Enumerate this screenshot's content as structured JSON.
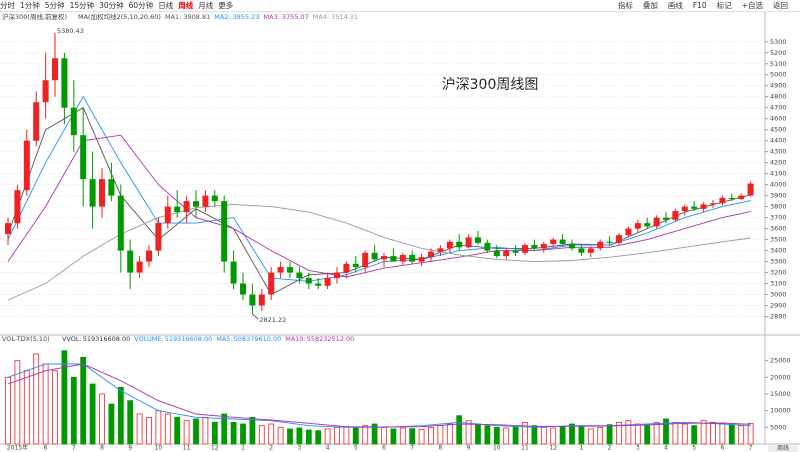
{
  "toolbar": {
    "periods": [
      "分时",
      "1分钟",
      "5分钟",
      "15分钟",
      "30分钟",
      "60分钟",
      "日线",
      "周线",
      "月线",
      "更多"
    ],
    "active": 7,
    "tools": [
      "指标",
      "叠加",
      "画线",
      "F10",
      "标记",
      "+自选",
      "返回"
    ]
  },
  "chart_data": [
    {
      "type": "candlestick",
      "header": "沪深300(周线,前复权)",
      "indicator": "MA(加权均线2(5,10,20,60)",
      "title": "沪深300周线图",
      "up_color": "#ee2222",
      "down_color": "#009a00",
      "grid": true,
      "ylim": [
        2650,
        5480
      ],
      "yticks": [
        2800,
        2900,
        3000,
        3100,
        3200,
        3300,
        3400,
        3500,
        3600,
        3700,
        3800,
        3900,
        4000,
        4100,
        4200,
        4300,
        4400,
        4500,
        4600,
        4700,
        4800,
        4900,
        5000,
        5100,
        5200,
        5300
      ],
      "high_label_index": 5,
      "low_label_index": 26,
      "categories": [
        null,
        "2015年",
        null,
        null,
        "6",
        null,
        null,
        "7",
        null,
        null,
        "8",
        null,
        null,
        "9",
        null,
        null,
        "10",
        null,
        null,
        "11",
        null,
        null,
        "12",
        null,
        null,
        "1",
        null,
        null,
        "2",
        null,
        null,
        "3",
        null,
        null,
        "4",
        null,
        null,
        "5",
        null,
        null,
        "6",
        null,
        null,
        "7",
        null,
        null,
        "8",
        null,
        null,
        "9",
        null,
        null,
        "10",
        null,
        null,
        "11",
        null,
        null,
        "12",
        null,
        null,
        "1",
        null,
        null,
        "2",
        null,
        null,
        "3",
        null,
        null,
        "4",
        null,
        null,
        "5",
        null,
        null,
        "6",
        null,
        null,
        "7"
      ],
      "candles": [
        [
          3550,
          3700,
          3450,
          3650
        ],
        [
          3650,
          4000,
          3600,
          3950
        ],
        [
          3950,
          4500,
          3900,
          4400
        ],
        [
          4400,
          4850,
          4350,
          4750
        ],
        [
          4750,
          5200,
          4600,
          4950
        ],
        [
          4950,
          5380.43,
          4800,
          5150
        ],
        [
          5150,
          5200,
          4550,
          4700
        ],
        [
          4700,
          4950,
          4300,
          4450
        ],
        [
          4450,
          4700,
          3800,
          4050
        ],
        [
          4050,
          4300,
          3600,
          3800
        ],
        [
          3800,
          4150,
          3700,
          4050
        ],
        [
          4050,
          4200,
          3850,
          3900
        ],
        [
          3900,
          4000,
          3200,
          3400
        ],
        [
          3400,
          3500,
          3050,
          3200
        ],
        [
          3200,
          3350,
          3150,
          3300
        ],
        [
          3300,
          3450,
          3250,
          3400
        ],
        [
          3400,
          3700,
          3350,
          3650
        ],
        [
          3650,
          3900,
          3600,
          3800
        ],
        [
          3800,
          3950,
          3700,
          3750
        ],
        [
          3750,
          3900,
          3650,
          3850
        ],
        [
          3850,
          3950,
          3700,
          3800
        ],
        [
          3800,
          3950,
          3750,
          3900
        ],
        [
          3900,
          3950,
          3800,
          3850
        ],
        [
          3850,
          3900,
          3200,
          3300
        ],
        [
          3300,
          3400,
          3050,
          3100
        ],
        [
          3100,
          3200,
          2950,
          3000
        ],
        [
          3000,
          3100,
          2821.22,
          2900
        ],
        [
          2900,
          3050,
          2850,
          3000
        ],
        [
          3000,
          3250,
          2950,
          3200
        ],
        [
          3200,
          3300,
          3150,
          3250
        ],
        [
          3250,
          3300,
          3150,
          3200
        ],
        [
          3200,
          3250,
          3100,
          3150
        ],
        [
          3150,
          3200,
          3050,
          3100
        ],
        [
          3100,
          3150,
          3050,
          3080
        ],
        [
          3080,
          3200,
          3050,
          3150
        ],
        [
          3150,
          3250,
          3100,
          3200
        ],
        [
          3200,
          3300,
          3150,
          3280
        ],
        [
          3280,
          3350,
          3200,
          3250
        ],
        [
          3250,
          3400,
          3200,
          3380
        ],
        [
          3380,
          3450,
          3300,
          3320
        ],
        [
          3320,
          3380,
          3250,
          3350
        ],
        [
          3350,
          3420,
          3300,
          3300
        ],
        [
          3300,
          3380,
          3270,
          3360
        ],
        [
          3360,
          3400,
          3280,
          3300
        ],
        [
          3300,
          3370,
          3260,
          3340
        ],
        [
          3340,
          3420,
          3300,
          3390
        ],
        [
          3390,
          3450,
          3350,
          3420
        ],
        [
          3420,
          3500,
          3380,
          3480
        ],
        [
          3480,
          3550,
          3400,
          3430
        ],
        [
          3430,
          3550,
          3420,
          3520
        ],
        [
          3520,
          3580,
          3450,
          3470
        ],
        [
          3470,
          3500,
          3380,
          3400
        ],
        [
          3400,
          3450,
          3330,
          3350
        ],
        [
          3350,
          3420,
          3320,
          3400
        ],
        [
          3400,
          3450,
          3350,
          3380
        ],
        [
          3380,
          3470,
          3360,
          3450
        ],
        [
          3450,
          3500,
          3400,
          3420
        ],
        [
          3420,
          3480,
          3380,
          3460
        ],
        [
          3460,
          3520,
          3430,
          3500
        ],
        [
          3500,
          3550,
          3440,
          3460
        ],
        [
          3460,
          3500,
          3400,
          3420
        ],
        [
          3420,
          3450,
          3350,
          3380
        ],
        [
          3380,
          3440,
          3340,
          3420
        ],
        [
          3420,
          3500,
          3400,
          3480
        ],
        [
          3480,
          3530,
          3440,
          3470
        ],
        [
          3470,
          3560,
          3450,
          3540
        ],
        [
          3540,
          3620,
          3520,
          3600
        ],
        [
          3600,
          3680,
          3560,
          3650
        ],
        [
          3650,
          3700,
          3600,
          3620
        ],
        [
          3620,
          3720,
          3600,
          3700
        ],
        [
          3700,
          3750,
          3650,
          3680
        ],
        [
          3680,
          3780,
          3660,
          3760
        ],
        [
          3760,
          3820,
          3720,
          3800
        ],
        [
          3800,
          3850,
          3760,
          3780
        ],
        [
          3780,
          3840,
          3750,
          3820
        ],
        [
          3820,
          3860,
          3790,
          3830
        ],
        [
          3830,
          3900,
          3810,
          3880
        ],
        [
          3880,
          3920,
          3850,
          3870
        ],
        [
          3870,
          3920,
          3860,
          3900
        ],
        [
          3900,
          4030,
          3890,
          4010
        ]
      ],
      "series": [
        {
          "name": "MA1:",
          "color": "#555555",
          "x": [
            0,
            4,
            8,
            12,
            16,
            20,
            24,
            28,
            32,
            36,
            40,
            44,
            48,
            52,
            56,
            60,
            64,
            68,
            72,
            76,
            79
          ],
          "values": [
            3550,
            4500,
            4700,
            3900,
            3500,
            3780,
            3600,
            3000,
            3180,
            3200,
            3340,
            3320,
            3450,
            3420,
            3420,
            3460,
            3450,
            3600,
            3750,
            3840,
            3908.81
          ]
        },
        {
          "name": "MA2:",
          "color": "#1e90ff",
          "x": [
            0,
            4,
            8,
            12,
            16,
            20,
            24,
            28,
            32,
            36,
            40,
            44,
            48,
            52,
            56,
            60,
            64,
            68,
            72,
            76,
            79
          ],
          "values": [
            3500,
            4200,
            4800,
            4200,
            3650,
            3650,
            3700,
            3150,
            3120,
            3180,
            3300,
            3320,
            3400,
            3430,
            3400,
            3450,
            3450,
            3560,
            3700,
            3800,
            3855.23
          ]
        },
        {
          "name": "MA3:",
          "color": "#b030b0",
          "x": [
            0,
            4,
            8,
            12,
            16,
            20,
            24,
            28,
            32,
            36,
            40,
            44,
            48,
            52,
            56,
            60,
            64,
            68,
            72,
            76,
            79
          ],
          "values": [
            3300,
            3800,
            4400,
            4450,
            4000,
            3700,
            3600,
            3400,
            3220,
            3160,
            3240,
            3290,
            3340,
            3400,
            3400,
            3430,
            3430,
            3500,
            3600,
            3700,
            3755.07
          ]
        },
        {
          "name": "MA4:",
          "color": "#999999",
          "x": [
            0,
            4,
            8,
            12,
            16,
            20,
            24,
            28,
            32,
            36,
            40,
            44,
            48,
            52,
            56,
            60,
            64,
            68,
            72,
            76,
            79
          ],
          "values": [
            2950,
            3100,
            3350,
            3550,
            3700,
            3790,
            3820,
            3800,
            3750,
            3650,
            3520,
            3420,
            3360,
            3320,
            3300,
            3310,
            3340,
            3380,
            3430,
            3480,
            3514.31
          ]
        }
      ]
    },
    {
      "type": "volume",
      "header": "VOL-TDX(5,10)",
      "period_badge": "周线",
      "ylim": [
        0,
        30000
      ],
      "yticks": [
        5000,
        10000,
        15000,
        20000,
        25000
      ],
      "values": [
        20000,
        25000,
        22000,
        27000,
        24000,
        22000,
        28000,
        20000,
        26000,
        18000,
        15000,
        12000,
        17000,
        13000,
        9000,
        8000,
        10000,
        9000,
        8000,
        7000,
        7500,
        8000,
        6500,
        9000,
        6500,
        6000,
        8000,
        5500,
        6000,
        5000,
        4500,
        4800,
        4200,
        4000,
        4500,
        5000,
        5200,
        4800,
        5500,
        6000,
        5000,
        4500,
        4800,
        4600,
        4400,
        5000,
        5500,
        6000,
        8500,
        7000,
        6000,
        5500,
        5000,
        4800,
        5200,
        6500,
        5500,
        5000,
        4800,
        5200,
        6000,
        5500,
        4500,
        5000,
        5800,
        6500,
        7000,
        6000,
        5500,
        6500,
        7500,
        6500,
        6000,
        5500,
        7000,
        6500,
        6000,
        5800,
        5500,
        6200
      ],
      "readouts": [
        {
          "name": "VVOL:",
          "value": 519316608,
          "label": "519316608.00",
          "color": "#333333"
        },
        {
          "name": "VOLUME:",
          "value": 519316608,
          "label": "519316608.00",
          "color": "#1e90ff"
        },
        {
          "name": "MA5:",
          "value": 508379610,
          "label": "508379610.00",
          "color": "#1e90ff"
        },
        {
          "name": "MA10:",
          "value": 558232512,
          "label": "558232512.00",
          "color": "#b030b0"
        }
      ],
      "series": [
        {
          "name": "MA5",
          "color": "#1e90ff",
          "x": [
            0,
            4,
            8,
            12,
            16,
            20,
            24,
            28,
            32,
            36,
            40,
            44,
            48,
            52,
            56,
            60,
            64,
            68,
            72,
            76,
            79
          ],
          "values": [
            20000,
            24000,
            24000,
            16000,
            10000,
            8000,
            7500,
            7000,
            5500,
            5000,
            5000,
            5500,
            6500,
            5500,
            5000,
            5500,
            5500,
            6000,
            6500,
            6000,
            5500
          ]
        },
        {
          "name": "MA10",
          "color": "#b030b0",
          "x": [
            0,
            4,
            8,
            12,
            16,
            20,
            24,
            28,
            32,
            36,
            40,
            44,
            48,
            52,
            56,
            60,
            64,
            68,
            72,
            76,
            79
          ],
          "values": [
            18000,
            22000,
            24000,
            19000,
            13000,
            9000,
            8000,
            7200,
            6200,
            5200,
            5100,
            5200,
            6000,
            5800,
            5300,
            5300,
            5400,
            5700,
            6200,
            6300,
            5900
          ]
        }
      ]
    }
  ]
}
